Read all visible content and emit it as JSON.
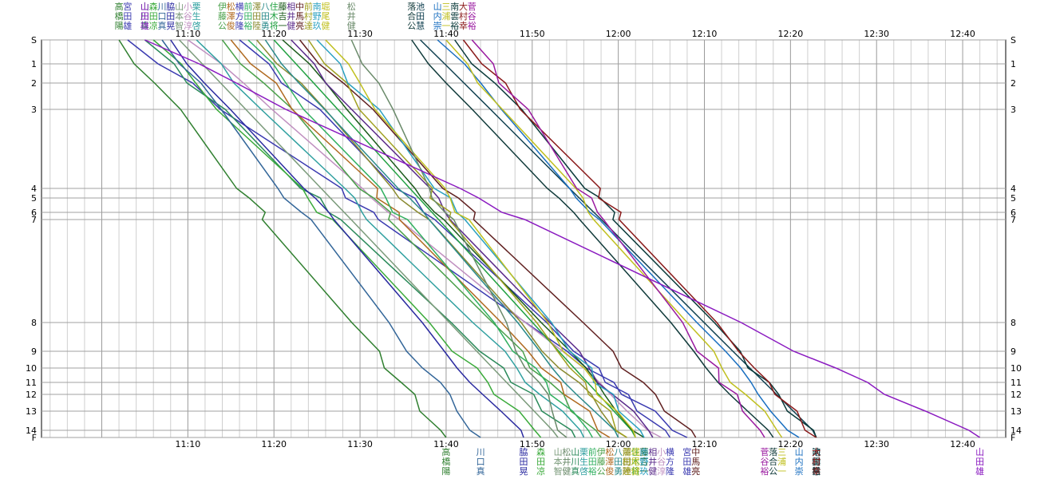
{
  "chart_data": {
    "type": "line",
    "title": "",
    "xlabel": "",
    "ylabel": "",
    "time_ticks": [
      "11:10",
      "11:20",
      "11:30",
      "11:40",
      "11:50",
      "12:00",
      "12:10",
      "12:20",
      "12:30",
      "12:40"
    ],
    "xlim_minutes": [
      653,
      765
    ],
    "checkpoints": [
      {
        "label": "S",
        "d": 0
      },
      {
        "label": "1",
        "d": 1.0
      },
      {
        "label": "2",
        "d": 1.8
      },
      {
        "label": "3",
        "d": 2.9
      },
      {
        "label": "4",
        "d": 6.2
      },
      {
        "label": "5",
        "d": 6.6
      },
      {
        "label": "6",
        "d": 7.2
      },
      {
        "label": "7",
        "d": 7.5
      },
      {
        "label": "8",
        "d": 11.8
      },
      {
        "label": "9",
        "d": 13.0
      },
      {
        "label": "10",
        "d": 13.7
      },
      {
        "label": "11",
        "d": 14.3
      },
      {
        "label": "12",
        "d": 14.8
      },
      {
        "label": "13",
        "d": 15.5
      },
      {
        "label": "14",
        "d": 16.3
      },
      {
        "label": "F",
        "d": 16.6
      }
    ],
    "grid": true,
    "series": [
      {
        "name": "高橋陽",
        "color": "#2f7f2f",
        "finish": "11:40",
        "start": "11:02"
      },
      {
        "name": "宮田雄",
        "color": "#3a3ab0",
        "finish": "12:08",
        "start": "11:03"
      },
      {
        "name": "山川真",
        "color": "#2a8a5a",
        "finish": "11:55",
        "start": "11:05"
      },
      {
        "name": "森田凉",
        "color": "#3aaa3a",
        "finish": "11:51",
        "start": "11:06"
      },
      {
        "name": "川口真",
        "color": "#336699",
        "finish": "11:44",
        "start": "11:07"
      },
      {
        "name": "脇田晃",
        "color": "#2a2aa0",
        "finish": "11:49",
        "start": "11:08"
      },
      {
        "name": "山本智",
        "color": "#7a9a7a",
        "finish": "11:53",
        "start": "11:09"
      },
      {
        "name": "小谷淳",
        "color": "#c090c0",
        "finish": "12:05",
        "start": "11:10"
      },
      {
        "name": "栗生啓",
        "color": "#30a0a0",
        "finish": "11:56",
        "start": "11:11"
      },
      {
        "name": "伊藤公",
        "color": "#4aa04a",
        "finish": "11:58",
        "start": "11:14"
      },
      {
        "name": "松澤俊",
        "color": "#b06a20",
        "finish": "11:59",
        "start": "11:15"
      },
      {
        "name": "横方隆",
        "color": "#3a3ab0",
        "finish": "12:06",
        "start": "11:16"
      },
      {
        "name": "前田裕",
        "color": "#30b060",
        "finish": "11:57",
        "start": "11:17"
      },
      {
        "name": "澤田陸",
        "color": "#8a8a30",
        "finish": "12:01",
        "start": "11:18"
      },
      {
        "name": "八田勇",
        "color": "#2a8a8a",
        "finish": "12:00",
        "start": "11:19"
      },
      {
        "name": "住木将",
        "color": "#20a040",
        "finish": "12:02",
        "start": "11:20"
      },
      {
        "name": "藤吉一",
        "color": "#1a5a1a",
        "finish": "12:03",
        "start": "11:21"
      },
      {
        "name": "相井健",
        "color": "#5a2a8a",
        "finish": "12:04",
        "start": "11:22"
      },
      {
        "name": "中馬亮",
        "color": "#602020",
        "finish": "12:09",
        "start": "11:23"
      },
      {
        "name": "前村達",
        "color": "#a0a020",
        "finish": "12:01",
        "start": "11:24"
      },
      {
        "name": "南野玖",
        "color": "#2aa0c0",
        "finish": "12:03",
        "start": "11:25"
      },
      {
        "name": "堀尾健",
        "color": "#c0c020",
        "finish": "12:02",
        "start": "11:26"
      },
      {
        "name": "松井健",
        "color": "#6a8a6a",
        "finish": "11:54",
        "start": "11:29"
      },
      {
        "name": "落合公",
        "color": "#103a3a",
        "finish": "12:18",
        "start": "11:36"
      },
      {
        "name": "池田慧",
        "color": "#104050",
        "finish": "12:23",
        "start": "11:37"
      },
      {
        "name": "山内崇",
        "color": "#1a6fc0",
        "finish": "12:21",
        "start": "11:39"
      },
      {
        "name": "三浦一",
        "color": "#c0c020",
        "finish": "12:19",
        "start": "11:40"
      },
      {
        "name": "南雲裕",
        "color": "#0a3a3a",
        "finish": "12:23",
        "start": "11:41"
      },
      {
        "name": "大村幸",
        "color": "#8a1a1a",
        "finish": "12:23",
        "start": "11:42"
      },
      {
        "name": "菅谷裕",
        "color": "#9a1aa0",
        "finish": "12:17",
        "start": "11:43"
      },
      {
        "name": "山田雄",
        "color": "#8a1ac0",
        "finish": "12:42",
        "start": "11:05"
      }
    ]
  }
}
